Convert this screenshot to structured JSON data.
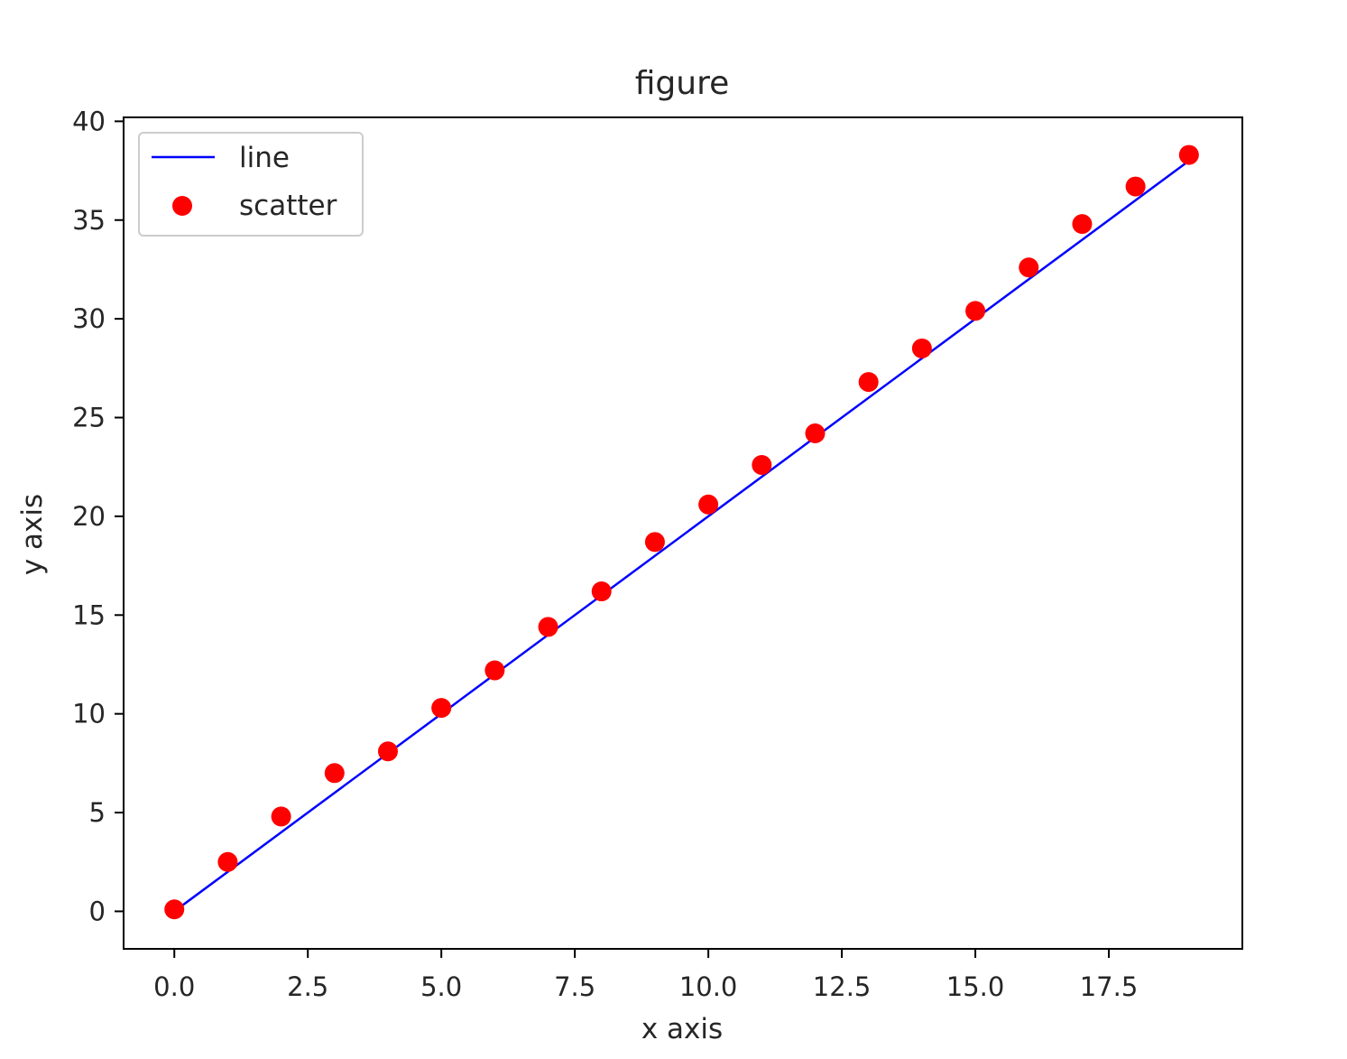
{
  "chart_data": {
    "type": "scatter",
    "title": "figure",
    "xlabel": "x axis",
    "ylabel": "y axis",
    "xlim": [
      -0.95,
      20.0
    ],
    "ylim": [
      -1.9,
      40.2
    ],
    "grid": false,
    "legend_position": "upper-left",
    "x_ticks": [
      "0.0",
      "2.5",
      "5.0",
      "7.5",
      "10.0",
      "12.5",
      "15.0",
      "17.5"
    ],
    "x_tick_values": [
      0,
      2.5,
      5,
      7.5,
      10,
      12.5,
      15,
      17.5
    ],
    "y_ticks": [
      "0",
      "5",
      "10",
      "15",
      "20",
      "25",
      "30",
      "35",
      "40"
    ],
    "y_tick_values": [
      0,
      5,
      10,
      15,
      20,
      25,
      30,
      35,
      40
    ],
    "series": [
      {
        "name": "line",
        "kind": "line",
        "color": "#0000ff",
        "x": [
          0,
          19
        ],
        "y": [
          0,
          38
        ]
      },
      {
        "name": "scatter",
        "kind": "scatter",
        "color": "#ff0000",
        "x": [
          0,
          1,
          2,
          3,
          4,
          5,
          6,
          7,
          8,
          9,
          10,
          11,
          12,
          13,
          14,
          15,
          16,
          17,
          18,
          19
        ],
        "y": [
          0.1,
          2.5,
          4.8,
          7.0,
          8.1,
          10.3,
          12.2,
          14.4,
          16.2,
          18.7,
          20.6,
          22.6,
          24.2,
          26.8,
          28.5,
          30.4,
          32.6,
          34.8,
          36.7,
          38.3
        ]
      }
    ]
  }
}
